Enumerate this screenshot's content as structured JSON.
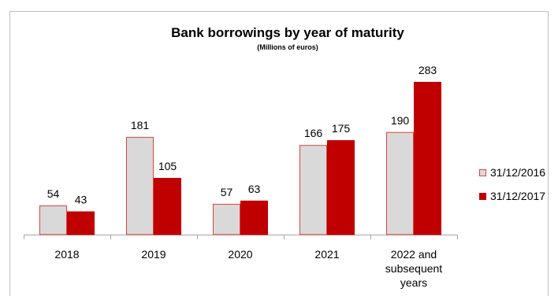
{
  "chart_data": {
    "type": "bar",
    "title": "Bank borrowings by year of maturity",
    "subtitle": "(Millions of euros)",
    "categories": [
      "2018",
      "2019",
      "2020",
      "2021",
      "2022 and subsequent years"
    ],
    "category_lines": [
      [
        "2018"
      ],
      [
        "2019"
      ],
      [
        "2020"
      ],
      [
        "2021"
      ],
      [
        "2022 and",
        "subsequent",
        "years"
      ]
    ],
    "series": [
      {
        "name": "31/12/2016",
        "values": [
          54,
          181,
          57,
          166,
          190
        ],
        "color": "#d9d9d9",
        "stroke": "#e04040"
      },
      {
        "name": "31/12/2017",
        "values": [
          43,
          105,
          63,
          175,
          283
        ],
        "color": "#c00000",
        "stroke": "#c00000"
      }
    ],
    "ylim": [
      0,
      283
    ],
    "grid": false,
    "legend_position": "right",
    "data_labels": true
  }
}
